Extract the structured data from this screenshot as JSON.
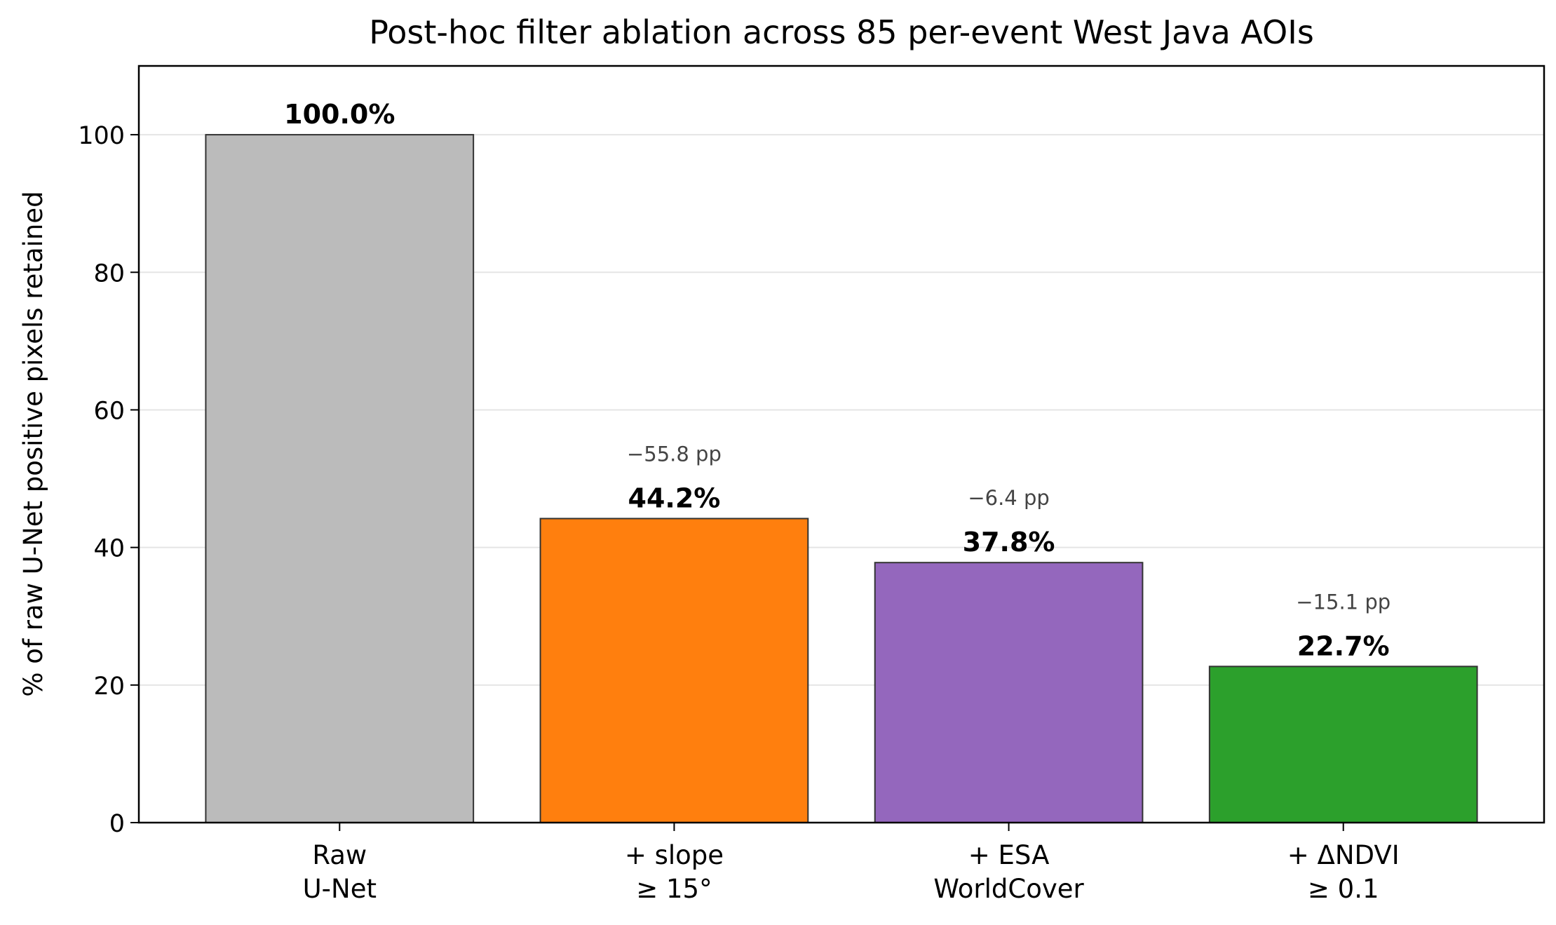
{
  "chart_data": {
    "type": "bar",
    "title": "Post-hoc filter ablation across 85 per-event West Java AOIs",
    "xlabel": "",
    "ylabel": "% of raw U-Net positive pixels retained",
    "ylim": [
      0,
      110
    ],
    "yticks": [
      0,
      20,
      40,
      60,
      80,
      100
    ],
    "grid": "y",
    "legend": "none",
    "categories": [
      [
        "Raw",
        "U-Net"
      ],
      [
        "+ slope",
        "≥ 15°"
      ],
      [
        "+ ESA",
        "WorldCover"
      ],
      [
        "+ ΔNDVI",
        "≥ 0.1"
      ]
    ],
    "values": [
      100.0,
      44.2,
      37.8,
      22.7
    ],
    "value_labels": [
      "100.0%",
      "44.2%",
      "37.8%",
      "22.7%"
    ],
    "delta_labels": [
      "",
      "−55.8 pp",
      "−6.4 pp",
      "−15.1 pp"
    ],
    "colors": [
      "#bbbbbb",
      "#ff7f0e",
      "#9467bd",
      "#2ca02c"
    ]
  }
}
